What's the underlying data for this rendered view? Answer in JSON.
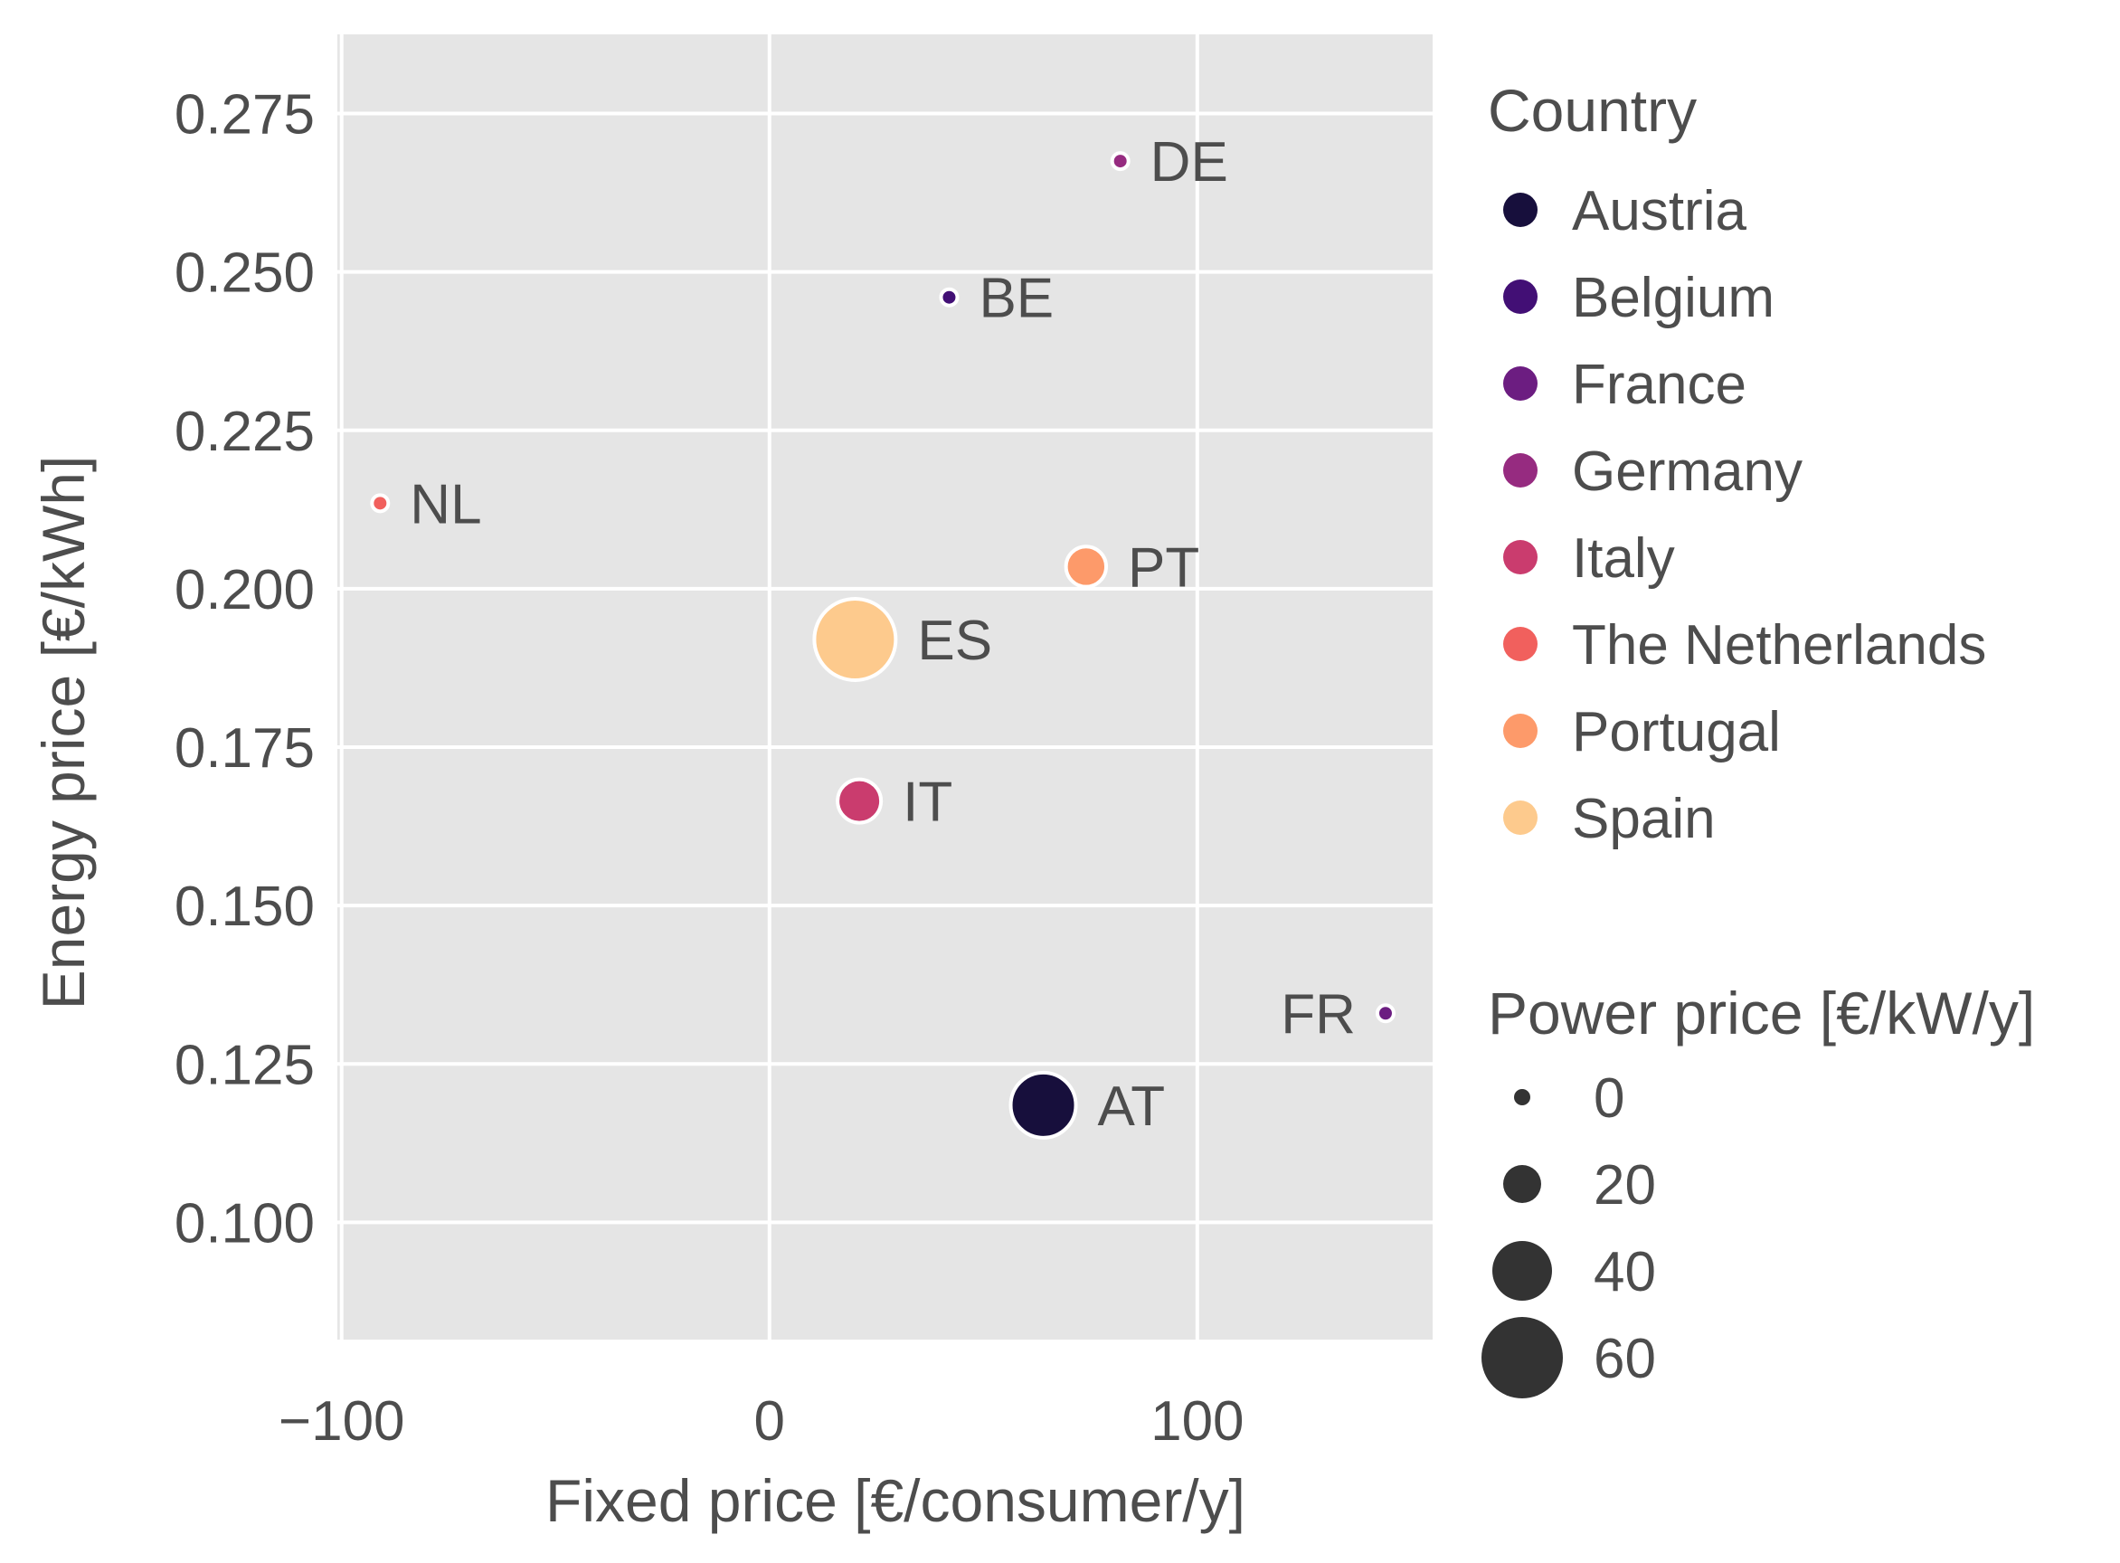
{
  "chart_data": {
    "type": "scatter",
    "xlabel": "Fixed price [€/consumer/y]",
    "ylabel": "Energy price [€/kWh]",
    "xlim": [
      -101,
      155
    ],
    "ylim": [
      0.0815,
      0.2875
    ],
    "xticks": [
      -100,
      0,
      100
    ],
    "xtick_labels": [
      "−100",
      "0",
      "100"
    ],
    "yticks": [
      0.1,
      0.125,
      0.15,
      0.175,
      0.2,
      0.225,
      0.25,
      0.275
    ],
    "ytick_labels": [
      "0.100",
      "0.125",
      "0.150",
      "0.175",
      "0.200",
      "0.225",
      "0.250",
      "0.275"
    ],
    "grid": true,
    "points": [
      {
        "code": "AT",
        "country": "Austria",
        "x": 64,
        "y": 0.1185,
        "power_price": 45,
        "label_side": "right"
      },
      {
        "code": "BE",
        "country": "Belgium",
        "x": 42,
        "y": 0.246,
        "power_price": 0,
        "label_side": "right"
      },
      {
        "code": "FR",
        "country": "France",
        "x": 144,
        "y": 0.133,
        "power_price": 0,
        "label_side": "left"
      },
      {
        "code": "DE",
        "country": "Germany",
        "x": 82,
        "y": 0.2675,
        "power_price": 0,
        "label_side": "right"
      },
      {
        "code": "IT",
        "country": "Italy",
        "x": 21,
        "y": 0.1665,
        "power_price": 25,
        "label_side": "right"
      },
      {
        "code": "NL",
        "country": "The Netherlands",
        "x": -91,
        "y": 0.2135,
        "power_price": 0,
        "label_side": "right"
      },
      {
        "code": "PT",
        "country": "Portugal",
        "x": 74,
        "y": 0.2035,
        "power_price": 22,
        "label_side": "right"
      },
      {
        "code": "ES",
        "country": "Spain",
        "x": 20,
        "y": 0.192,
        "power_price": 60,
        "label_side": "right"
      }
    ],
    "legend_country": {
      "title": "Country",
      "entries": [
        {
          "label": "Austria",
          "color": "#170f3c"
        },
        {
          "label": "Belgium",
          "color": "#420f75"
        },
        {
          "label": "France",
          "color": "#6c1d81"
        },
        {
          "label": "Germany",
          "color": "#962b80"
        },
        {
          "label": "Italy",
          "color": "#ca3c6e"
        },
        {
          "label": "The Netherlands",
          "color": "#f1605d"
        },
        {
          "label": "Portugal",
          "color": "#fd9a6a"
        },
        {
          "label": "Spain",
          "color": "#fdca8d"
        }
      ]
    },
    "legend_size": {
      "title": "Power price [€/kW/y]",
      "values": [
        0,
        20,
        40,
        60
      ],
      "labels": [
        "0",
        "20",
        "40",
        "60"
      ],
      "color": "#333333"
    }
  }
}
